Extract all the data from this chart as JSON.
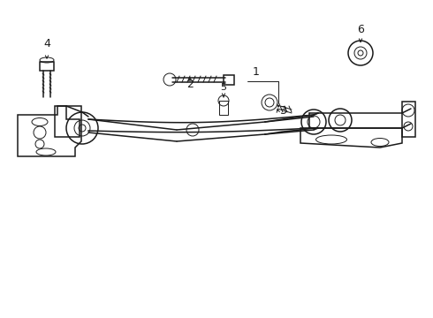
{
  "background_color": "#ffffff",
  "line_color": "#1a1a1a",
  "fig_width": 4.9,
  "fig_height": 3.6,
  "dpi": 100,
  "label_fontsize": 9,
  "xlim": [
    0,
    490
  ],
  "ylim": [
    0,
    360
  ]
}
